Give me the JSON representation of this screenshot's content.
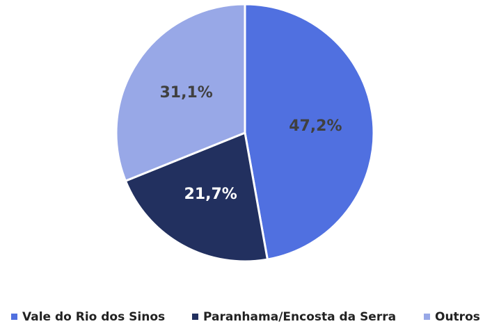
{
  "chart_data": {
    "type": "pie",
    "categories": [
      "Vale do Rio dos Sinos",
      "Paranhama/Encosta da Serra",
      "Outros"
    ],
    "values": [
      47.2,
      21.7,
      31.1
    ],
    "value_labels": [
      "47,2%",
      "21,7%",
      "31,1%"
    ],
    "colors": [
      "#5070e0",
      "#22305f",
      "#98a8e7"
    ],
    "legend": "bottom"
  }
}
